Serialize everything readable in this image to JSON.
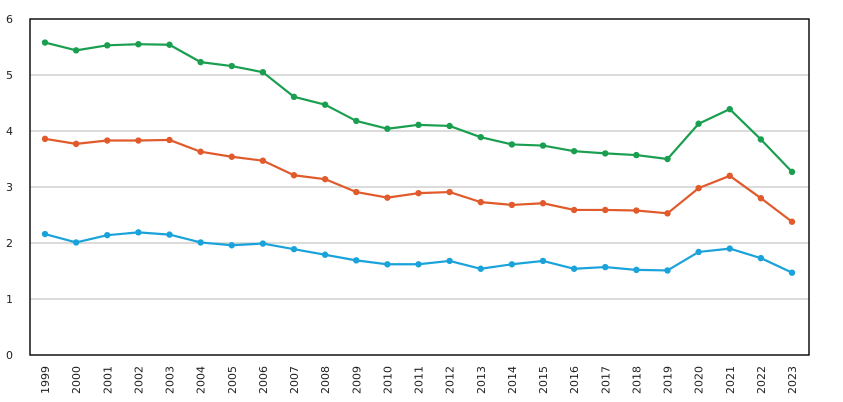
{
  "chart_data": {
    "type": "line",
    "title": "",
    "xlabel": "",
    "ylabel": "",
    "x": [
      "1999",
      "2000",
      "2001",
      "2002",
      "2003",
      "2004",
      "2005",
      "2006",
      "2007",
      "2008",
      "2009",
      "2010",
      "2011",
      "2012",
      "2013",
      "2014",
      "2015",
      "2016",
      "2017",
      "2018",
      "2019",
      "2020",
      "2021",
      "2022",
      "2023"
    ],
    "ylim": [
      0,
      6
    ],
    "yticks": [
      "0",
      "1",
      "2",
      "3",
      "4",
      "5",
      "6"
    ],
    "grid": true,
    "legend": "none",
    "series": [
      {
        "color": "#1a9e4f",
        "values": [
          5.58,
          5.44,
          5.53,
          5.55,
          5.54,
          5.23,
          5.16,
          5.05,
          4.61,
          4.47,
          4.18,
          4.04,
          4.11,
          4.09,
          3.89,
          3.76,
          3.74,
          3.64,
          3.6,
          3.57,
          3.5,
          4.13,
          4.39,
          3.85,
          3.27
        ]
      },
      {
        "color": "#e05a2b",
        "values": [
          3.86,
          3.77,
          3.83,
          3.83,
          3.84,
          3.63,
          3.54,
          3.47,
          3.21,
          3.14,
          2.91,
          2.81,
          2.89,
          2.91,
          2.73,
          2.68,
          2.71,
          2.59,
          2.59,
          2.58,
          2.53,
          2.98,
          3.2,
          2.8,
          2.38
        ]
      },
      {
        "color": "#1aa3da",
        "values": [
          2.16,
          2.01,
          2.14,
          2.19,
          2.15,
          2.01,
          1.96,
          1.99,
          1.89,
          1.79,
          1.69,
          1.62,
          1.62,
          1.68,
          1.54,
          1.62,
          1.68,
          1.54,
          1.57,
          1.52,
          1.51,
          1.84,
          1.9,
          1.73,
          1.47
        ]
      }
    ]
  }
}
